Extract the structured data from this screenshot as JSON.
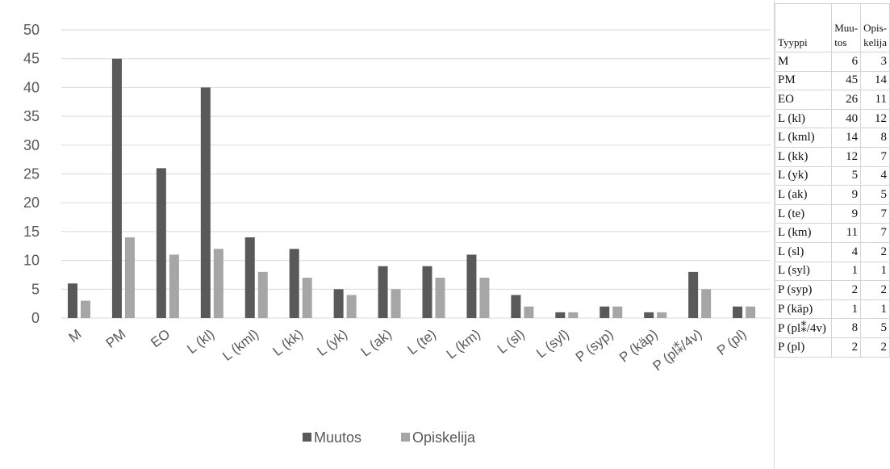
{
  "chart_data": {
    "type": "bar",
    "categories": [
      "M",
      "PM",
      "EO",
      "L (kl)",
      "L (kml)",
      "L (kk)",
      "L (yk)",
      "L (ak)",
      "L (te)",
      "L (km)",
      "L (sl)",
      "L (syl)",
      "P (syp)",
      "P (käp)",
      "P (pl⁑/4v)",
      "P (pl)"
    ],
    "series": [
      {
        "name": "Muutos",
        "values": [
          6,
          45,
          26,
          40,
          14,
          12,
          5,
          9,
          9,
          11,
          4,
          1,
          2,
          1,
          8,
          2
        ],
        "color": "#595959"
      },
      {
        "name": "Opiskelija",
        "values": [
          3,
          14,
          11,
          12,
          8,
          7,
          4,
          5,
          7,
          7,
          2,
          1,
          2,
          1,
          5,
          2
        ],
        "color": "#a6a6a6"
      }
    ],
    "ylim": [
      0,
      50
    ],
    "yticks": [
      0,
      5,
      10,
      15,
      20,
      25,
      30,
      35,
      40,
      45,
      50
    ],
    "grid": true,
    "legend": "bottom"
  },
  "table": {
    "headers": {
      "type": "Tyyppi",
      "muutos_line1": "Muu-",
      "muutos_line2": "tos",
      "opiskelija_line1": "Opis-",
      "opiskelija_line2": "kelija"
    },
    "rows": [
      {
        "type": "M",
        "muutos": "6",
        "opiskelija": "3"
      },
      {
        "type": "PM",
        "muutos": "45",
        "opiskelija": "14"
      },
      {
        "type": "EO",
        "muutos": "26",
        "opiskelija": "11"
      },
      {
        "type": "L (kl)",
        "muutos": "40",
        "opiskelija": "12"
      },
      {
        "type": "L (kml)",
        "muutos": "14",
        "opiskelija": "8"
      },
      {
        "type": "L (kk)",
        "muutos": "12",
        "opiskelija": "7"
      },
      {
        "type": "L (yk)",
        "muutos": "5",
        "opiskelija": "4"
      },
      {
        "type": "L (ak)",
        "muutos": "9",
        "opiskelija": "5"
      },
      {
        "type": "L (te)",
        "muutos": "9",
        "opiskelija": "7"
      },
      {
        "type": "L (km)",
        "muutos": "11",
        "opiskelija": "7"
      },
      {
        "type": "L (sl)",
        "muutos": "4",
        "opiskelija": "2"
      },
      {
        "type": "L (syl)",
        "muutos": "1",
        "opiskelija": "1"
      },
      {
        "type": "P (syp)",
        "muutos": "2",
        "opiskelija": "2"
      },
      {
        "type": "P (käp)",
        "muutos": "1",
        "opiskelija": "1"
      },
      {
        "type": "P (pl⁑/4v)",
        "muutos": "8",
        "opiskelija": "5"
      },
      {
        "type": "P (pl)",
        "muutos": "2",
        "opiskelija": "2"
      }
    ]
  }
}
